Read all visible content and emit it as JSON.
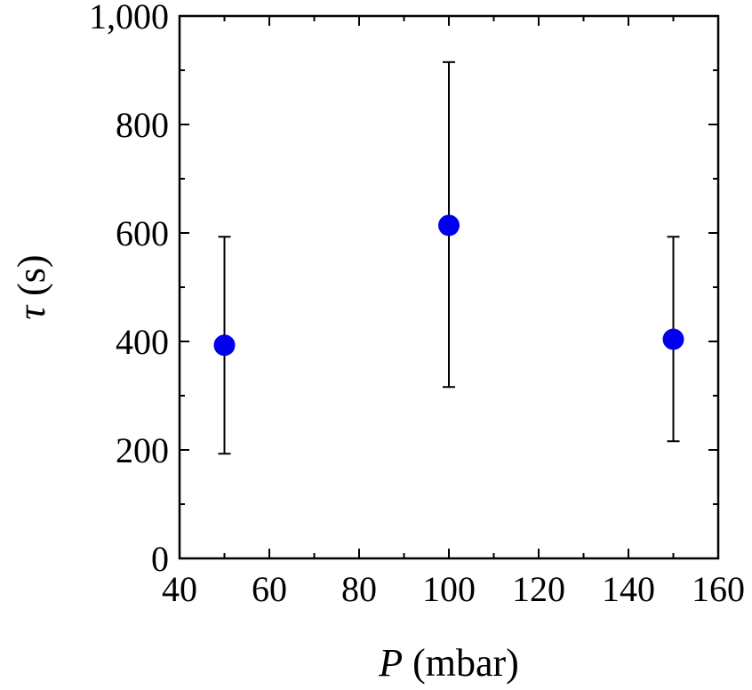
{
  "chart_data": {
    "type": "scatter",
    "xlabel_var": "P",
    "xlabel_unit": " (mbar)",
    "ylabel_var": "τ",
    "ylabel_unit": " (s)",
    "xlim": [
      40,
      160
    ],
    "ylim": [
      0,
      1000
    ],
    "xticks": [
      40,
      60,
      80,
      100,
      120,
      140,
      160
    ],
    "xtick_labels": [
      "40",
      "60",
      "80",
      "100",
      "120",
      "140",
      "160"
    ],
    "yticks": [
      0,
      200,
      400,
      600,
      800,
      1000
    ],
    "ytick_labels": [
      "0",
      "200",
      "400",
      "600",
      "800",
      "1,000"
    ],
    "grid": false,
    "marker_color": "#0000ee",
    "points": [
      {
        "x": 50,
        "y": 393,
        "err_low": 193,
        "err_high": 593
      },
      {
        "x": 100,
        "y": 614,
        "err_low": 316,
        "err_high": 915
      },
      {
        "x": 150,
        "y": 404,
        "err_low": 216,
        "err_high": 593
      }
    ]
  }
}
